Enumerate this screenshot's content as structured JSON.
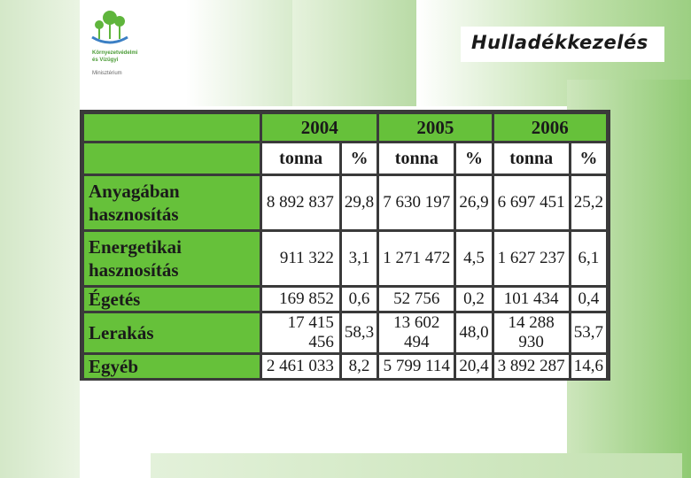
{
  "org": {
    "name_line1": "Környezetvédelmi",
    "name_line2": "és Vízügyi",
    "name_line3": "Minisztérium"
  },
  "title": "Hulladékkezelés",
  "table": {
    "years": [
      "2004",
      "2005",
      "2006"
    ],
    "units": [
      "tonna",
      "%",
      "tonna",
      "%",
      "tonna",
      "%"
    ],
    "rows": [
      {
        "label": "Anyagában hasznosítás",
        "values": [
          "8 892 837",
          "29,8",
          "7 630 197",
          "26,9",
          "6 697 451",
          "25,2"
        ]
      },
      {
        "label": "Energetikai hasznosítás",
        "values": [
          "911 322",
          "3,1",
          "1 271 472",
          "4,5",
          "1 627 237",
          "6,1"
        ]
      },
      {
        "label": "Égetés",
        "values": [
          "169 852",
          "0,6",
          "52 756",
          "0,2",
          "101 434",
          "0,4"
        ]
      },
      {
        "label": "Lerakás",
        "values": [
          "17 415 456",
          "58,3",
          "13 602 494",
          "48,0",
          "14 288 930",
          "53,7"
        ]
      },
      {
        "label": "Egyéb",
        "values": [
          "2 461 033",
          "8,2",
          "5 799 114",
          "20,4",
          "3 892 287",
          "14,6"
        ]
      }
    ]
  },
  "colors": {
    "header_green": "#66c13a",
    "border": "#3a3a3a"
  }
}
